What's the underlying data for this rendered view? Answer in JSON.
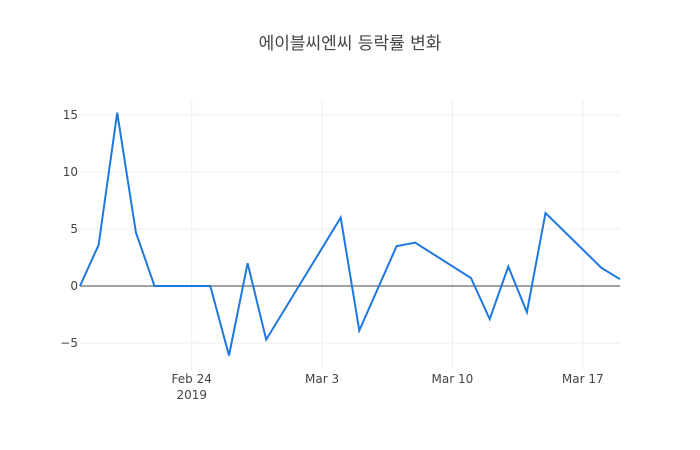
{
  "chart_data": {
    "type": "line",
    "title": "에이블씨엔씨 등락률 변화",
    "xlabel": "",
    "ylabel": "",
    "x": [
      "2019-02-18",
      "2019-02-19",
      "2019-02-20",
      "2019-02-21",
      "2019-02-22",
      "2019-02-25",
      "2019-02-26",
      "2019-02-27",
      "2019-02-28",
      "2019-03-04",
      "2019-03-05",
      "2019-03-07",
      "2019-03-08",
      "2019-03-11",
      "2019-03-12",
      "2019-03-13",
      "2019-03-14",
      "2019-03-15",
      "2019-03-18",
      "2019-03-19"
    ],
    "series": [
      {
        "name": "등락률",
        "color": "#1f77e0",
        "values": [
          0,
          3.6,
          15.2,
          4.7,
          0,
          0,
          -6.1,
          2.0,
          -4.7,
          6.0,
          -3.9,
          3.5,
          3.8,
          0.7,
          -2.9,
          1.7,
          -2.3,
          6.4,
          1.6,
          0.6
        ]
      }
    ],
    "xlim": [
      "2019-02-18",
      "2019-03-19"
    ],
    "ylim": [
      -7.5,
      16.5
    ],
    "x_ticks": [
      {
        "date": "2019-02-24",
        "label": "Feb 24",
        "sublabel": "2019"
      },
      {
        "date": "2019-03-03",
        "label": "Mar 3",
        "sublabel": ""
      },
      {
        "date": "2019-03-10",
        "label": "Mar 10",
        "sublabel": ""
      },
      {
        "date": "2019-03-17",
        "label": "Mar 17",
        "sublabel": ""
      }
    ],
    "y_ticks": [
      15,
      10,
      5,
      0,
      -5
    ],
    "y_tick_labels": [
      "15",
      "10",
      "5",
      "0",
      "−5"
    ],
    "grid": true,
    "legend": false
  },
  "colors": {
    "line": "#1f77e0",
    "grid": "#eeeeee",
    "zeroline": "#444444",
    "text": "#444444"
  }
}
